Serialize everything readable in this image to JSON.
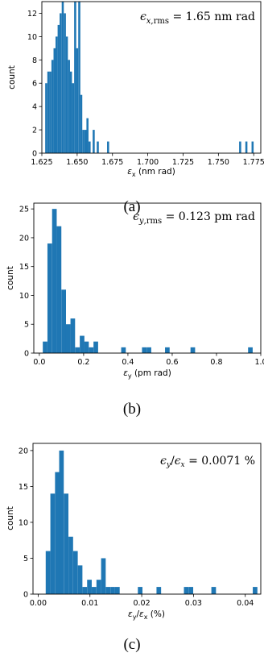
{
  "chart_data": [
    {
      "type": "bar",
      "xlabel": "ϵx (nm rad)",
      "ylabel": "count",
      "annotation": "ϵx,rms = 1.65 nm rad",
      "caption": "(a)",
      "xlim": [
        1.625,
        1.78
      ],
      "ylim": [
        0,
        13
      ],
      "xticks": [
        "1.625",
        "1.650",
        "1.675",
        "1.700",
        "1.725",
        "1.750",
        "1.775"
      ],
      "yticks": [
        "0",
        "2",
        "4",
        "6",
        "8",
        "10",
        "12"
      ],
      "bin_width": 0.00146,
      "x": [
        1.6281,
        1.6296,
        1.631,
        1.6325,
        1.634,
        1.6354,
        1.6369,
        1.6383,
        1.6398,
        1.6413,
        1.6427,
        1.6442,
        1.6456,
        1.6471,
        1.6486,
        1.65,
        1.6515,
        1.6529,
        1.6544,
        1.6559,
        1.6573,
        1.6588,
        1.6617,
        1.6646,
        1.6719,
        1.7654,
        1.7698,
        1.7742
      ],
      "values": [
        6,
        7,
        7,
        8,
        9,
        10,
        11,
        12,
        13,
        12,
        10,
        8,
        7,
        6,
        13,
        9,
        13,
        5,
        2,
        2,
        3,
        1,
        2,
        1,
        1,
        1,
        1,
        1
      ]
    },
    {
      "type": "bar",
      "xlabel": "ϵy (pm rad)",
      "ylabel": "count",
      "annotation": "ϵy,rms = 0.123 pm rad",
      "caption": "(b)",
      "xlim": [
        -0.025,
        1.0
      ],
      "ylim": [
        0,
        26
      ],
      "xticks": [
        "0.0",
        "0.2",
        "0.4",
        "0.6",
        "0.8",
        "1.0"
      ],
      "yticks": [
        "0",
        "5",
        "10",
        "15",
        "20",
        "25"
      ],
      "bin_width": 0.0208,
      "x": [
        0.026,
        0.047,
        0.068,
        0.089,
        0.11,
        0.13,
        0.151,
        0.172,
        0.193,
        0.213,
        0.234,
        0.255,
        0.38,
        0.474,
        0.495,
        0.578,
        0.693,
        0.953
      ],
      "values": [
        2,
        19,
        25,
        22,
        11,
        5,
        6,
        1,
        3,
        2,
        1,
        2,
        1,
        1,
        1,
        1,
        1,
        1
      ]
    },
    {
      "type": "bar",
      "xlabel": "ϵy/ϵx (%)",
      "ylabel": "count",
      "annotation": "ϵy/ϵx = 0.0071 %",
      "caption": "(c)",
      "xlim": [
        -0.001,
        0.043
      ],
      "ylim": [
        0,
        21
      ],
      "xticks": [
        "0.00",
        "0.01",
        "0.02",
        "0.03",
        "0.04"
      ],
      "yticks": [
        "0",
        "5",
        "10",
        "15",
        "20"
      ],
      "bin_width": 0.00089,
      "x": [
        0.0019,
        0.0028,
        0.0037,
        0.0045,
        0.0054,
        0.0063,
        0.0072,
        0.0081,
        0.009,
        0.0099,
        0.0108,
        0.0117,
        0.0126,
        0.0135,
        0.0144,
        0.0153,
        0.0197,
        0.0233,
        0.0286,
        0.0295,
        0.0339,
        0.0419
      ],
      "values": [
        6,
        14,
        17,
        20,
        14,
        8,
        6,
        4,
        1,
        2,
        1,
        2,
        5,
        1,
        1,
        1,
        1,
        1,
        1,
        1,
        1,
        1
      ]
    }
  ]
}
